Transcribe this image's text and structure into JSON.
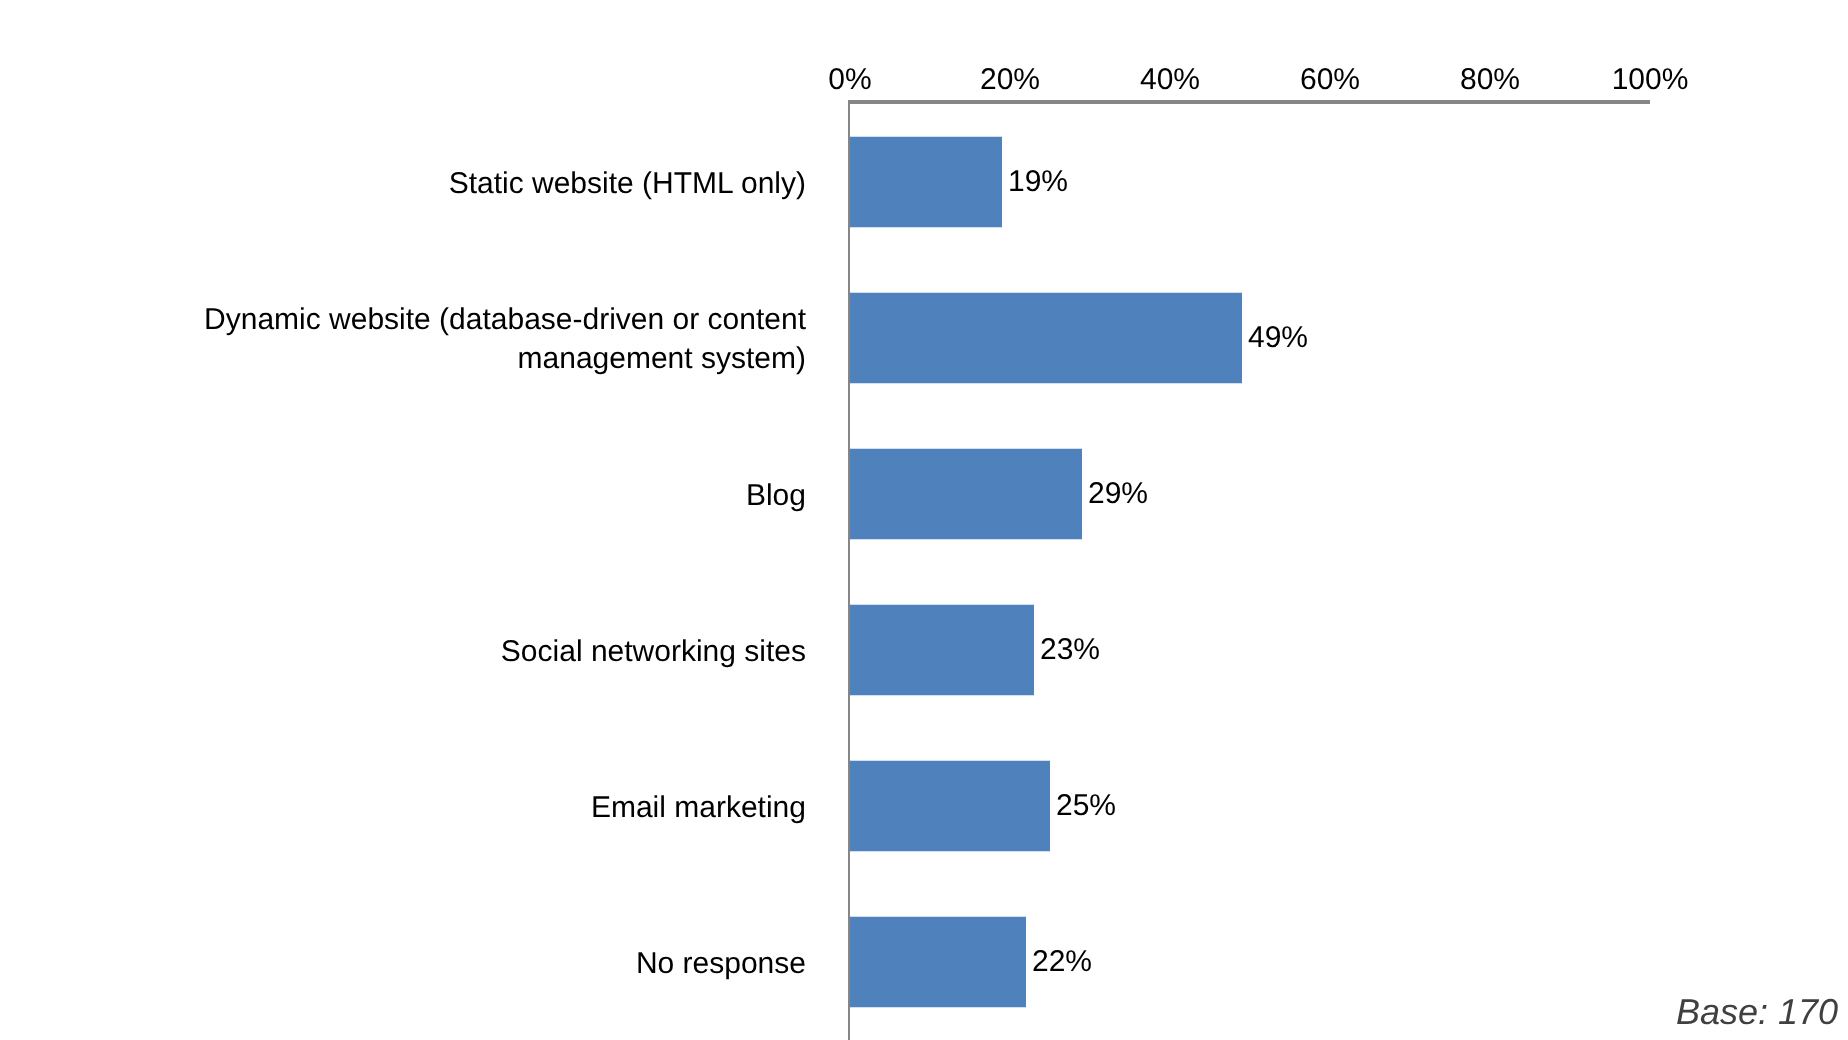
{
  "chart_data": {
    "type": "bar",
    "orientation": "horizontal",
    "categories": [
      "Static website (HTML only)",
      "Dynamic website (database-driven or content management system)",
      "Blog",
      "Social networking sites",
      "Email marketing",
      "No response"
    ],
    "values": [
      19,
      49,
      29,
      23,
      25,
      22
    ],
    "value_labels": [
      "19%",
      "49%",
      "29%",
      "23%",
      "25%",
      "22%"
    ],
    "color": "#4f81bd",
    "xlim": [
      0,
      100
    ],
    "xticks": [
      {
        "value": 0,
        "label": "0%"
      },
      {
        "value": 20,
        "label": "20%"
      },
      {
        "value": 40,
        "label": "40%"
      },
      {
        "value": 60,
        "label": "60%"
      },
      {
        "value": 80,
        "label": "80%"
      },
      {
        "value": 100,
        "label": "100%"
      }
    ],
    "legend": false,
    "annotations": [
      "Base: 170"
    ]
  }
}
